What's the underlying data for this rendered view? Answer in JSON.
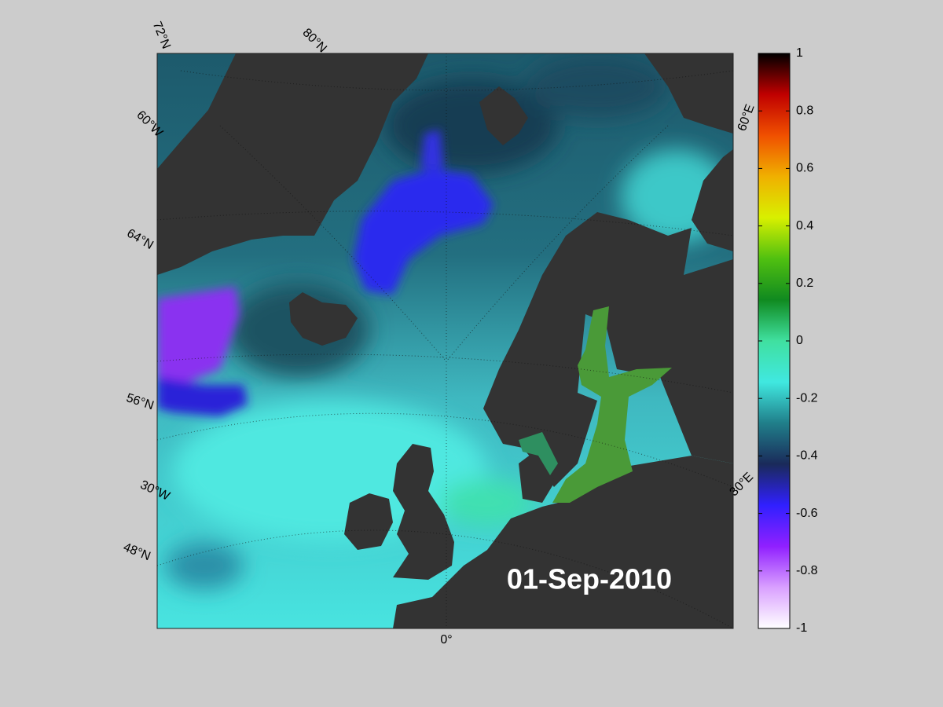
{
  "map": {
    "date": "01-Sep-2010",
    "graticule_labels": [
      "72°N",
      "80°N",
      "60°W",
      "64°N",
      "56°N",
      "30°W",
      "48°N",
      "0°",
      "60°E",
      "30°E"
    ],
    "colorbar": {
      "lim": [
        -1,
        1
      ],
      "ticks": [
        1,
        0.8,
        0.6,
        0.4,
        0.2,
        0,
        -0.2,
        -0.4,
        -0.6,
        -0.8,
        -1
      ],
      "colormap": [
        "#ffffff",
        "#d9a0ff",
        "#9020ff",
        "#3020ff",
        "#1a2a5a",
        "#207f8a",
        "#40e8e0",
        "#40e0a0",
        "#108a20",
        "#50c010",
        "#d8f000",
        "#f0b000",
        "#f05000",
        "#c00000",
        "#000000"
      ]
    }
  }
}
